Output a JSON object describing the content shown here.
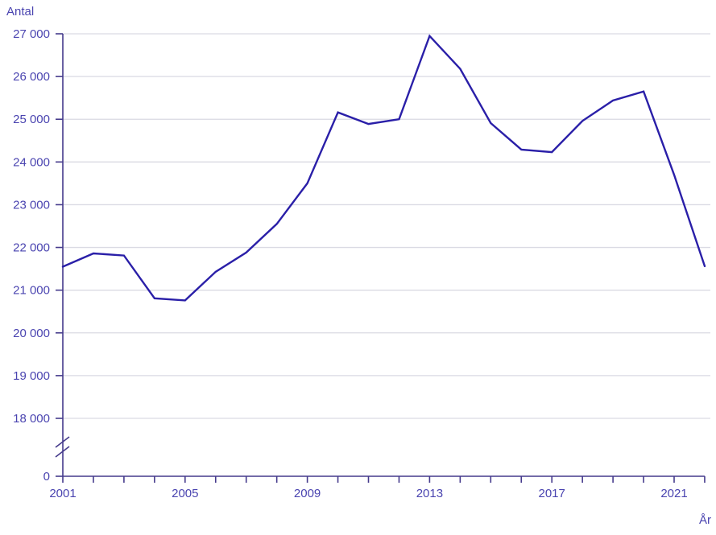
{
  "chart_data": {
    "type": "line",
    "title": "",
    "ylabel": "Antal",
    "xlabel": "År",
    "x": [
      2001,
      2002,
      2003,
      2004,
      2005,
      2006,
      2007,
      2008,
      2009,
      2010,
      2011,
      2012,
      2013,
      2014,
      2015,
      2016,
      2017,
      2018,
      2019,
      2020,
      2021,
      2022
    ],
    "values": [
      21550,
      21860,
      21810,
      20810,
      20760,
      21430,
      21880,
      22550,
      23500,
      25160,
      24890,
      25000,
      26950,
      26180,
      24910,
      24290,
      24230,
      24960,
      25440,
      25650,
      23700,
      21560
    ],
    "ylim_main": [
      18000,
      27000
    ],
    "y_axis_break_to_zero": true,
    "grid": true,
    "legend_position": "none",
    "y_tick_labels": [
      "27 000",
      "26 000",
      "25 000",
      "24 000",
      "23 000",
      "22 000",
      "21 000",
      "20 000",
      "19 000",
      "18 000"
    ],
    "y_zero_label": "0",
    "x_tick_labeled_years": [
      "2001",
      "2005",
      "2009",
      "2013",
      "2017",
      "2021"
    ],
    "colors": {
      "line": "#2a1fa8",
      "axis": "#453a8c",
      "grid": "#dadae3",
      "label": "#4a44b0"
    }
  }
}
